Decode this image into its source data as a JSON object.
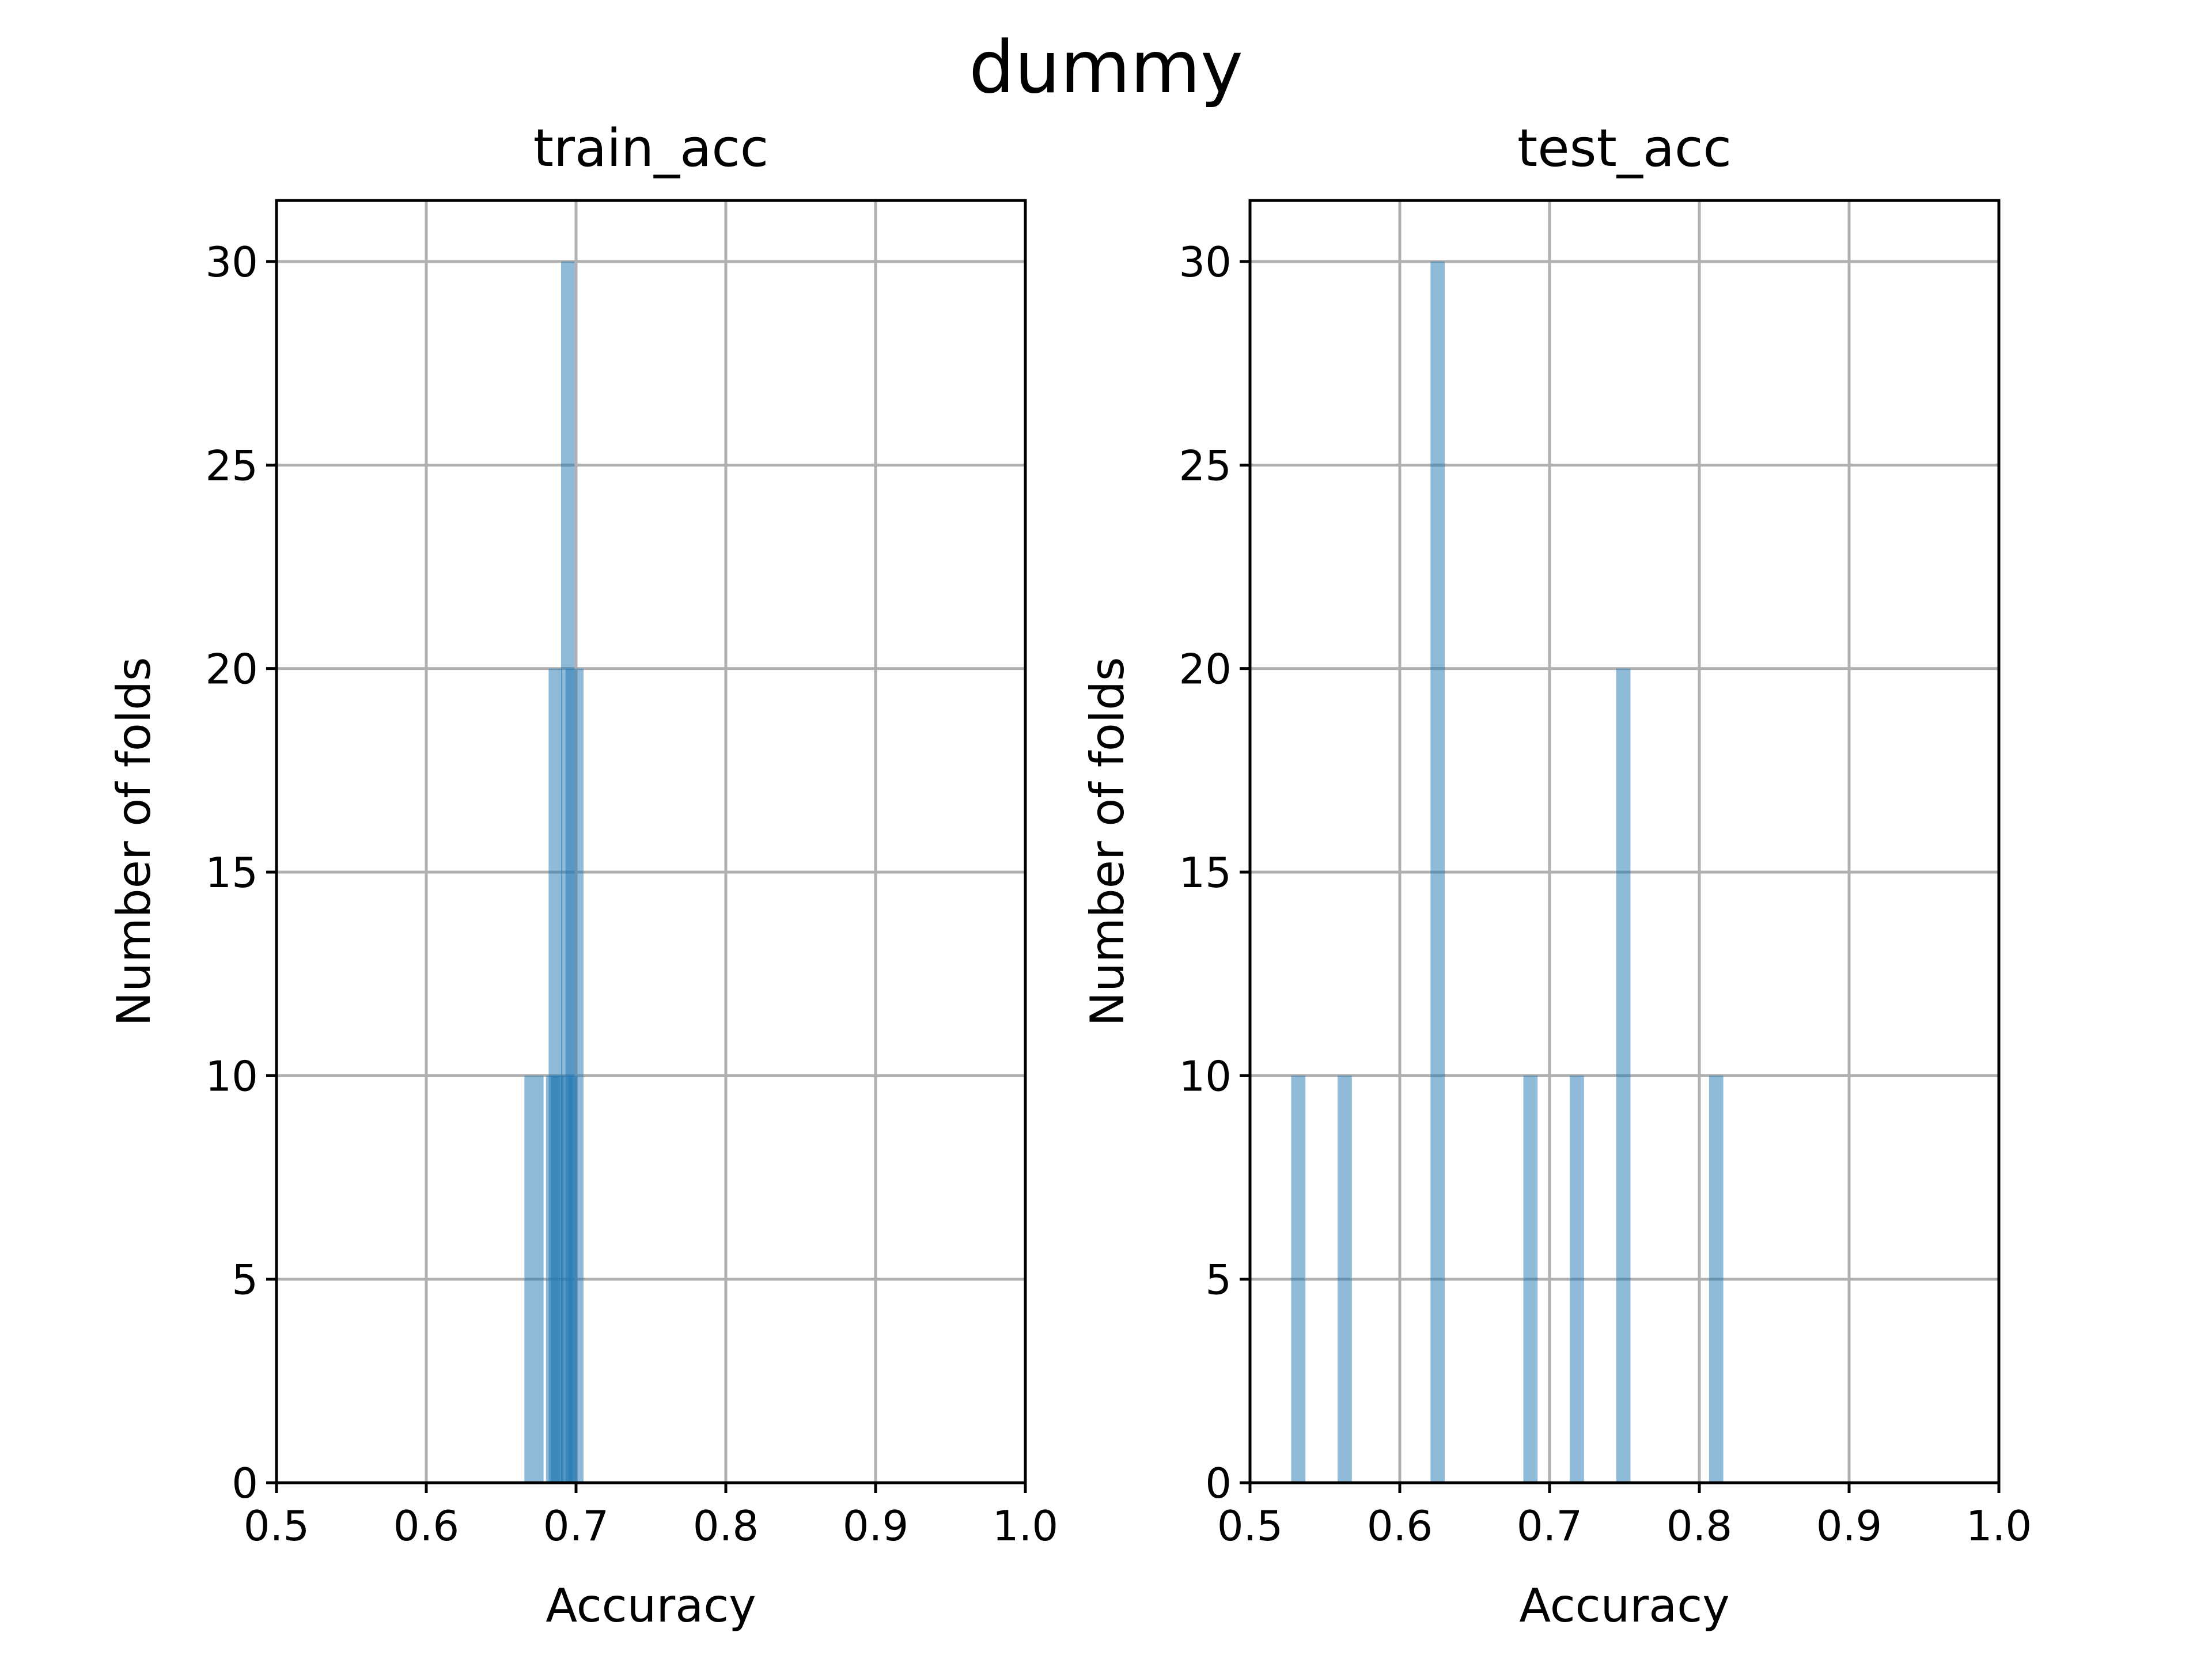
{
  "chart_data": {
    "type": "bar",
    "title": "dummy",
    "color": "#1f77b4",
    "bar_opacity": 0.5,
    "grid": true,
    "panels": [
      {
        "title": "train_acc",
        "xlabel": "Accuracy",
        "ylabel": "Number of folds",
        "xlim": [
          0.5,
          1.0
        ],
        "ylim": [
          0,
          31.5
        ],
        "xticks": [
          "0.5",
          "0.6",
          "0.7",
          "0.8",
          "0.9",
          "1.0"
        ],
        "yticks": [
          "0",
          "5",
          "10",
          "15",
          "20",
          "25",
          "30"
        ],
        "bars": [
          {
            "left": 0.6655,
            "right": 0.6783,
            "value": 10
          },
          {
            "left": 0.6799,
            "right": 0.6892,
            "value": 10
          },
          {
            "left": 0.6817,
            "right": 0.6908,
            "value": 20
          },
          {
            "left": 0.6832,
            "right": 0.6917,
            "value": 10
          },
          {
            "left": 0.6898,
            "right": 0.6975,
            "value": 10
          },
          {
            "left": 0.69,
            "right": 0.699,
            "value": 30
          },
          {
            "left": 0.693,
            "right": 0.705,
            "value": 20
          },
          {
            "left": 0.695,
            "right": 0.701,
            "value": 10
          }
        ]
      },
      {
        "title": "test_acc",
        "xlabel": "Accuracy",
        "ylabel": "Number of folds",
        "xlim": [
          0.5,
          1.0
        ],
        "ylim": [
          0,
          31.5
        ],
        "xticks": [
          "0.5",
          "0.6",
          "0.7",
          "0.8",
          "0.9",
          "1.0"
        ],
        "yticks": [
          "0",
          "5",
          "10",
          "15",
          "20",
          "25",
          "30"
        ],
        "bars": [
          {
            "left": 0.5275,
            "right": 0.537,
            "value": 10
          },
          {
            "left": 0.5585,
            "right": 0.568,
            "value": 10
          },
          {
            "left": 0.6205,
            "right": 0.63,
            "value": 30
          },
          {
            "left": 0.6825,
            "right": 0.692,
            "value": 10
          },
          {
            "left": 0.7135,
            "right": 0.723,
            "value": 10
          },
          {
            "left": 0.7445,
            "right": 0.754,
            "value": 20
          },
          {
            "left": 0.8065,
            "right": 0.816,
            "value": 10
          }
        ]
      }
    ]
  }
}
